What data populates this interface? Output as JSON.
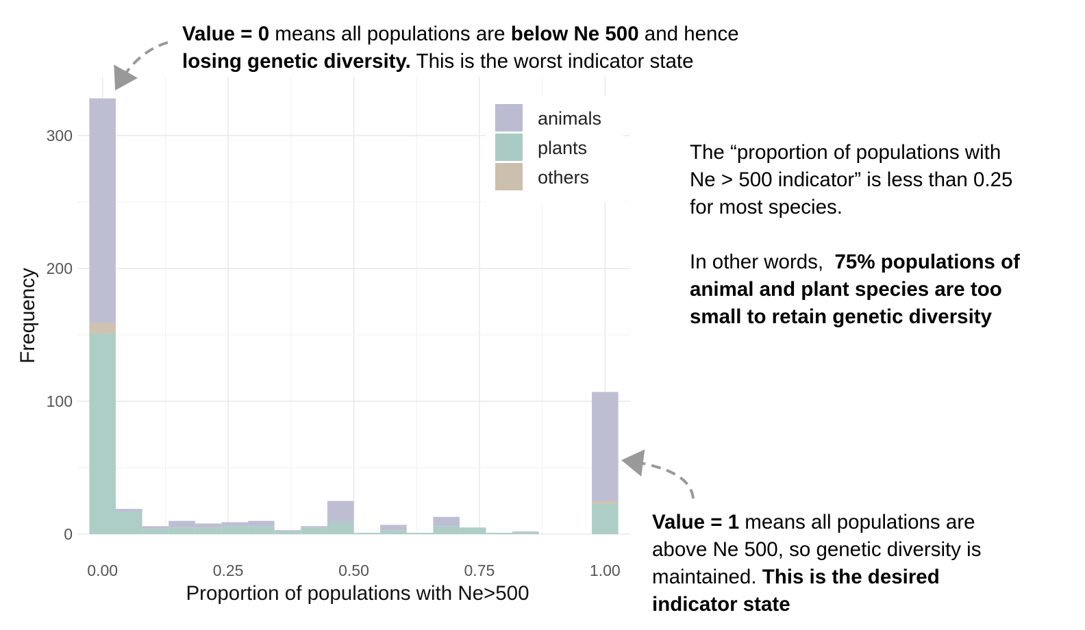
{
  "annotations": {
    "top": {
      "bold1": "Value = 0",
      "text1": " means all populations are ",
      "bold2": "below Ne 500",
      "text2": " and hence",
      "bold3": "losing genetic diversity.",
      "text3": " This is the worst indicator state"
    },
    "right": {
      "line1": "The “proportion of populations with",
      "line2": "Ne > 500 indicator” is less than 0.25",
      "line3": "for most species.",
      "text4": "In other words,  ",
      "bold1": "75% populations of",
      "bold2": "animal and plant species are too",
      "bold3": "small to retain genetic diversity"
    },
    "bottom": {
      "bold1": "Value = 1",
      "text1": " means all populations are",
      "line2": "above Ne 500, so genetic diversity is",
      "text3": "maintained. ",
      "bold2": "This is the desired",
      "bold3": "indicator state"
    }
  },
  "chart_data": {
    "type": "bar",
    "stacked": true,
    "xlabel": "Proportion of populations with Ne>500",
    "ylabel": "Frequency",
    "xlim": [
      -0.05,
      1.05
    ],
    "ylim": [
      0,
      330
    ],
    "x_ticks": [
      0,
      0.25,
      0.5,
      0.75,
      1
    ],
    "x_tick_labels": [
      "0.00",
      "0.25",
      "0.50",
      "0.75",
      "1.00"
    ],
    "y_ticks": [
      0,
      100,
      200,
      300
    ],
    "y_tick_labels": [
      "0",
      "100",
      "200",
      "300"
    ],
    "bin_width": 0.0526,
    "x": [
      0,
      0.0526,
      0.1053,
      0.1579,
      0.2105,
      0.2632,
      0.3158,
      0.3684,
      0.4211,
      0.4737,
      0.5263,
      0.5789,
      0.6316,
      0.6842,
      0.7368,
      0.7895,
      0.8421,
      0.8947,
      0.9474,
      1
    ],
    "series": [
      {
        "name": "plants",
        "color": "#a9cbc3",
        "values": [
          151,
          17,
          4,
          5,
          5,
          6,
          6,
          2,
          5,
          9,
          1,
          3,
          1,
          6,
          5,
          1,
          1,
          0,
          0,
          23
        ]
      },
      {
        "name": "others",
        "color": "#cdbfad",
        "values": [
          8,
          0,
          0,
          0,
          0,
          0,
          0,
          0,
          0,
          0,
          0,
          0,
          0,
          0,
          0,
          0,
          0,
          0,
          0,
          2
        ]
      },
      {
        "name": "animals",
        "color": "#bbbbd1",
        "values": [
          169,
          2,
          2,
          5,
          3,
          3,
          4,
          1,
          1,
          16,
          0,
          4,
          0,
          7,
          0,
          0,
          1,
          0,
          0,
          82
        ]
      }
    ],
    "legend": {
      "position": "top-right",
      "entries": [
        {
          "label": "animals",
          "color": "#bbbbd1"
        },
        {
          "label": "plants",
          "color": "#a9cbc3"
        },
        {
          "label": "others",
          "color": "#cdbfad"
        }
      ]
    },
    "grid": true
  }
}
